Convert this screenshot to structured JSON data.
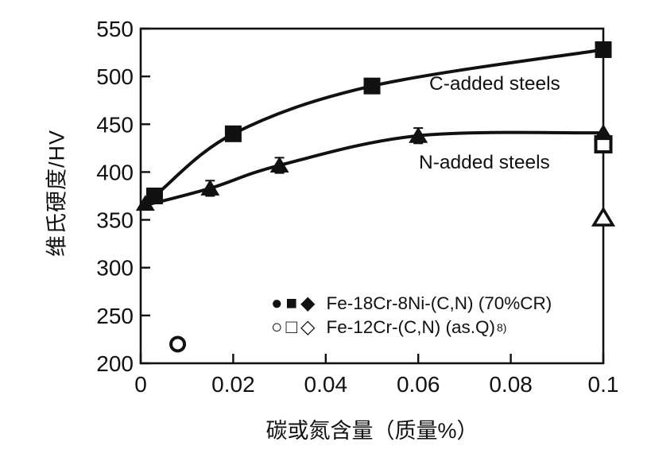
{
  "page": {
    "background": "#ffffff"
  },
  "chart_data": {
    "type": "line+scatter",
    "title": "",
    "xlabel": "碳或氮含量（质量%）",
    "ylabel": "维氏硬度/HV",
    "xlim": [
      0,
      0.1
    ],
    "ylim": [
      200,
      550
    ],
    "xticks": [
      0,
      0.02,
      0.04,
      0.06,
      0.08,
      0.1
    ],
    "xtick_labels": [
      "0",
      "0.02",
      "0.04",
      "0.06",
      "0.08",
      "0.1"
    ],
    "yticks": [
      200,
      250,
      300,
      350,
      400,
      450,
      500,
      550
    ],
    "ytick_labels": [
      "200",
      "250",
      "300",
      "350",
      "400",
      "450",
      "500",
      "550"
    ],
    "grid": false,
    "legend_position": "inside-bottom-center",
    "axis_color": "#111111",
    "series": [
      {
        "name": "C-added steels",
        "marker": "filled-square",
        "line": true,
        "trend": [
          [
            0,
            366
          ],
          [
            0.003,
            375
          ],
          [
            0.02,
            440
          ],
          [
            0.05,
            490
          ],
          [
            0.1,
            528
          ]
        ],
        "points": [
          {
            "x": 0.003,
            "y": 375
          },
          {
            "x": 0.02,
            "y": 440
          },
          {
            "x": 0.05,
            "y": 490
          },
          {
            "x": 0.1,
            "y": 528
          }
        ]
      },
      {
        "name": "N-added steels",
        "marker": "filled-triangle",
        "line": true,
        "trend": [
          [
            0,
            364
          ],
          [
            0.015,
            383
          ],
          [
            0.03,
            407
          ],
          [
            0.06,
            438
          ],
          [
            0.1,
            441
          ]
        ],
        "points": [
          {
            "x": 0.001,
            "y": 367
          },
          {
            "x": 0.015,
            "y": 383,
            "yerr": 8
          },
          {
            "x": 0.03,
            "y": 407,
            "yerr": 8
          },
          {
            "x": 0.06,
            "y": 438,
            "yerr": 8
          },
          {
            "x": 0.1,
            "y": 441
          }
        ]
      },
      {
        "name": "Fe-12Cr-(C,N) (as.Q)",
        "marker": "mixed-open",
        "line": false,
        "points": [
          {
            "x": 0.008,
            "y": 220,
            "marker": "open-circle"
          },
          {
            "x": 0.1,
            "y": 429,
            "marker": "open-square"
          },
          {
            "x": 0.1,
            "y": 352,
            "marker": "open-triangle"
          }
        ]
      }
    ],
    "annotations": [
      {
        "text": "C-added steels"
      },
      {
        "text": "N-added steels"
      }
    ],
    "legend": {
      "rows": [
        {
          "symbols": "●■◆",
          "label": "Fe-18Cr-8Ni-(C,N) (70%CR)",
          "reference": ""
        },
        {
          "symbols": "○□◇",
          "label": "Fe-12Cr-(C,N) (as.Q)",
          "reference": "8)"
        }
      ]
    }
  }
}
